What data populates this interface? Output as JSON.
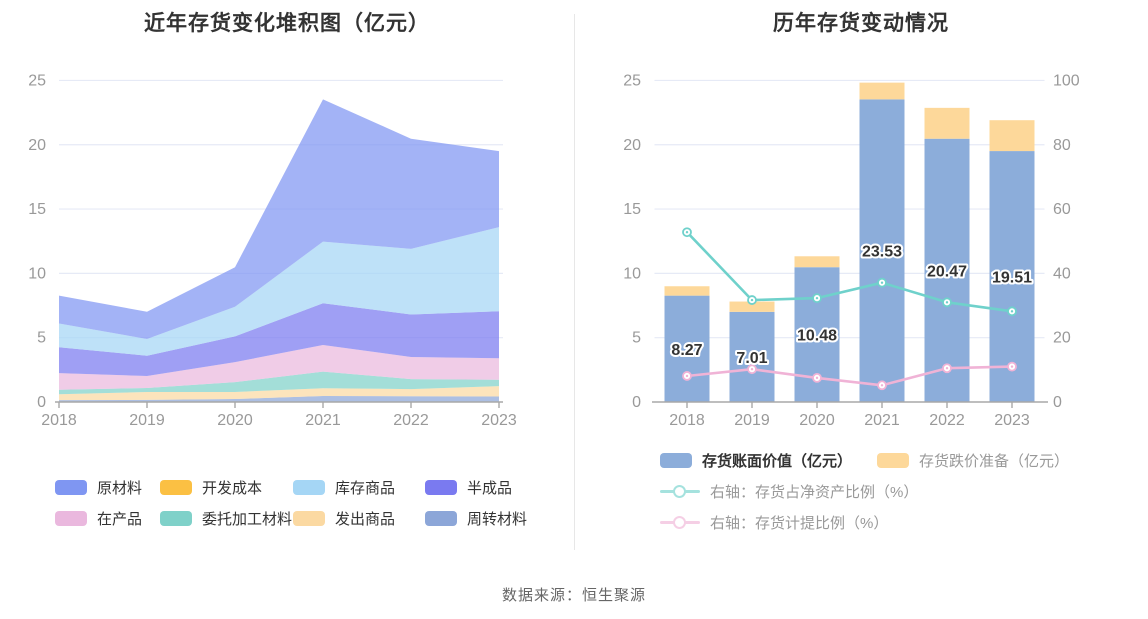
{
  "ui": {
    "source": "数据来源：恒生聚源",
    "colors": {
      "grid": "#e6eaf6",
      "axis": "#a8a8a8",
      "tick_label": "#999999",
      "title": "#333333",
      "bar_value_label": "#333333"
    }
  },
  "chart_data": [
    {
      "type": "area",
      "title": "近年存货变化堆积图（亿元）",
      "categories": [
        "2018",
        "2019",
        "2020",
        "2021",
        "2022",
        "2023"
      ],
      "ylim": [
        0,
        25
      ],
      "yticks": [
        0,
        5,
        10,
        15,
        20,
        25
      ],
      "grid": true,
      "legend_position": "bottom",
      "stacked": true,
      "series": [
        {
          "name": "周转材料",
          "color": "#8ca6d8",
          "values": [
            0.15,
            0.16,
            0.23,
            0.47,
            0.45,
            0.43
          ]
        },
        {
          "name": "发出商品",
          "color": "#fbd9a2",
          "values": [
            0.45,
            0.62,
            0.55,
            0.6,
            0.55,
            0.81
          ]
        },
        {
          "name": "委托加工材料",
          "color": "#7fd1c9",
          "values": [
            0.35,
            0.31,
            0.77,
            1.29,
            0.78,
            0.49
          ]
        },
        {
          "name": "在产品",
          "color": "#eab8de",
          "values": [
            1.3,
            0.93,
            1.55,
            2.07,
            1.72,
            1.67
          ]
        },
        {
          "name": "半成品",
          "color": "#7a7af0",
          "values": [
            2.0,
            1.58,
            2.0,
            3.24,
            3.3,
            3.65
          ]
        },
        {
          "name": "库存商品",
          "color": "#a5d6f5",
          "values": [
            1.85,
            1.3,
            2.3,
            4.8,
            5.1,
            6.55
          ]
        },
        {
          "name": "原材料",
          "color": "#7f96f2",
          "values": [
            2.17,
            2.11,
            3.08,
            11.06,
            8.57,
            5.91
          ]
        },
        {
          "name": "开发成本",
          "color": "#fbc043",
          "values": [
            0,
            0,
            0,
            0,
            0,
            0
          ]
        }
      ],
      "totals": [
        8.27,
        7.01,
        10.48,
        23.53,
        20.47,
        19.51
      ],
      "legend": [
        "原材料",
        "开发成本",
        "库存商品",
        "半成品",
        "在产品",
        "委托加工材料",
        "发出商品",
        "周转材料"
      ]
    },
    {
      "type": "bar",
      "title": "历年存货变动情况",
      "categories": [
        "2018",
        "2019",
        "2020",
        "2021",
        "2022",
        "2023"
      ],
      "left_axis": {
        "lim": [
          0,
          25
        ],
        "ticks": [
          0,
          5,
          10,
          15,
          20,
          25
        ]
      },
      "right_axis": {
        "lim": [
          0,
          100
        ],
        "ticks": [
          0,
          20,
          40,
          60,
          80,
          100
        ]
      },
      "grid": true,
      "legend_position": "bottom",
      "bar_series": [
        {
          "name": "存货账面价值（亿元）",
          "color": "#8cadda",
          "axis": "left",
          "values": [
            8.27,
            7.01,
            10.48,
            23.53,
            20.47,
            19.51
          ],
          "data_labels": [
            "8.27",
            "7.01",
            "10.48",
            "23.53",
            "20.47",
            "19.51"
          ]
        },
        {
          "name": "存货跌价准备（亿元）",
          "color": "#fdd89a",
          "axis": "left",
          "values": [
            0.73,
            0.8,
            0.85,
            1.3,
            2.4,
            2.4
          ]
        }
      ],
      "line_series": [
        {
          "name": "右轴：存货占净资产比例（%）",
          "color": "#6fd1cb",
          "axis": "right",
          "values": [
            52.8,
            31.7,
            32.3,
            37.1,
            31.0,
            28.2
          ]
        },
        {
          "name": "右轴：存货计提比例（%）",
          "color": "#f0b3d6",
          "axis": "right",
          "values": [
            8.1,
            10.2,
            7.5,
            5.2,
            10.5,
            11.0
          ]
        }
      ]
    }
  ]
}
